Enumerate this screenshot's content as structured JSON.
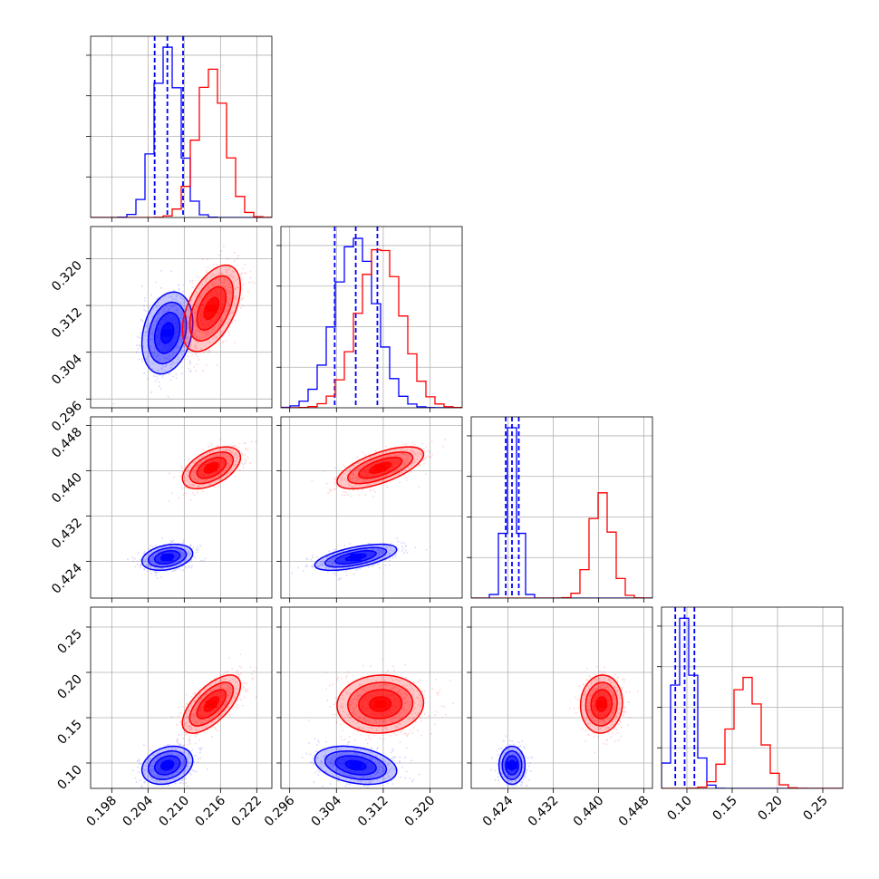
{
  "chart_data": {
    "type": "corner",
    "parameters": [
      {
        "ticks": [
          0.198,
          0.204,
          0.21,
          0.216,
          0.222
        ],
        "tick_labels": [
          "0.198",
          "0.204",
          "0.210",
          "0.216",
          "0.222"
        ],
        "range": [
          0.1945,
          0.2245
        ]
      },
      {
        "ticks": [
          0.296,
          0.304,
          0.312,
          0.32
        ],
        "tick_labels": [
          "0.296",
          "0.304",
          "0.312",
          "0.320"
        ],
        "range": [
          0.2945,
          0.3255
        ]
      },
      {
        "ticks": [
          0.424,
          0.432,
          0.44,
          0.448
        ],
        "tick_labels": [
          "0.424",
          "0.432",
          "0.440",
          "0.448"
        ],
        "range": [
          0.4175,
          0.4495
        ]
      },
      {
        "ticks": [
          0.1,
          0.15,
          0.2,
          0.25
        ],
        "tick_labels": [
          "0.10",
          "0.15",
          "0.20",
          "0.25"
        ],
        "range": [
          0.072,
          0.272
        ]
      }
    ],
    "series": [
      {
        "color": "#0000ff",
        "means": [
          0.2072,
          0.3073,
          0.4247,
          0.0975
        ],
        "sigmas": [
          0.0021,
          0.0035,
          0.00115,
          0.0105
        ],
        "correlation": [
          [
            1,
            0.25,
            0.3,
            0.25
          ],
          [
            0.25,
            1,
            0.6,
            -0.3
          ],
          [
            0.3,
            0.6,
            1,
            0.0
          ],
          [
            0.25,
            -0.3,
            0.0,
            1
          ]
        ],
        "quantiles": [
          [
            0.2051,
            0.2072,
            0.2098
          ],
          [
            0.3037,
            0.3073,
            0.311
          ],
          [
            0.4236,
            0.4247,
            0.4259
          ],
          [
            0.0872,
            0.0975,
            0.1083
          ]
        ],
        "show_quantiles": true
      },
      {
        "color": "#ff0000",
        "means": [
          0.2145,
          0.3115,
          0.4405,
          0.165
        ],
        "sigmas": [
          0.0024,
          0.0037,
          0.00185,
          0.016
        ],
        "correlation": [
          [
            1,
            0.5,
            0.5,
            0.65
          ],
          [
            0.5,
            1,
            0.65,
            0.05
          ],
          [
            0.5,
            0.65,
            1,
            0.05
          ],
          [
            0.65,
            0.05,
            0.05,
            1
          ]
        ],
        "quantiles": [],
        "show_quantiles": false
      }
    ],
    "grid": true,
    "title": "",
    "legend": "none"
  }
}
